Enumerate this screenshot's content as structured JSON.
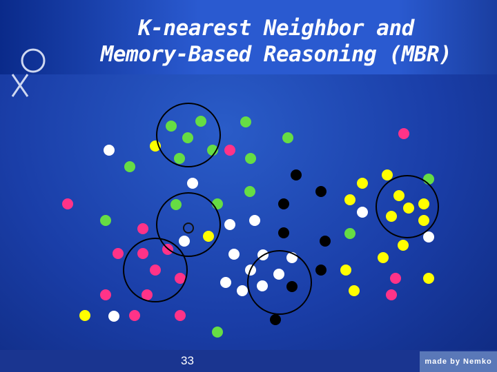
{
  "slide": {
    "title_lines": [
      "K-nearest Neighbor and",
      "Memory-Based Reasoning (MBR)"
    ],
    "page_number": "33",
    "footer": "made by Nemko"
  }
}
